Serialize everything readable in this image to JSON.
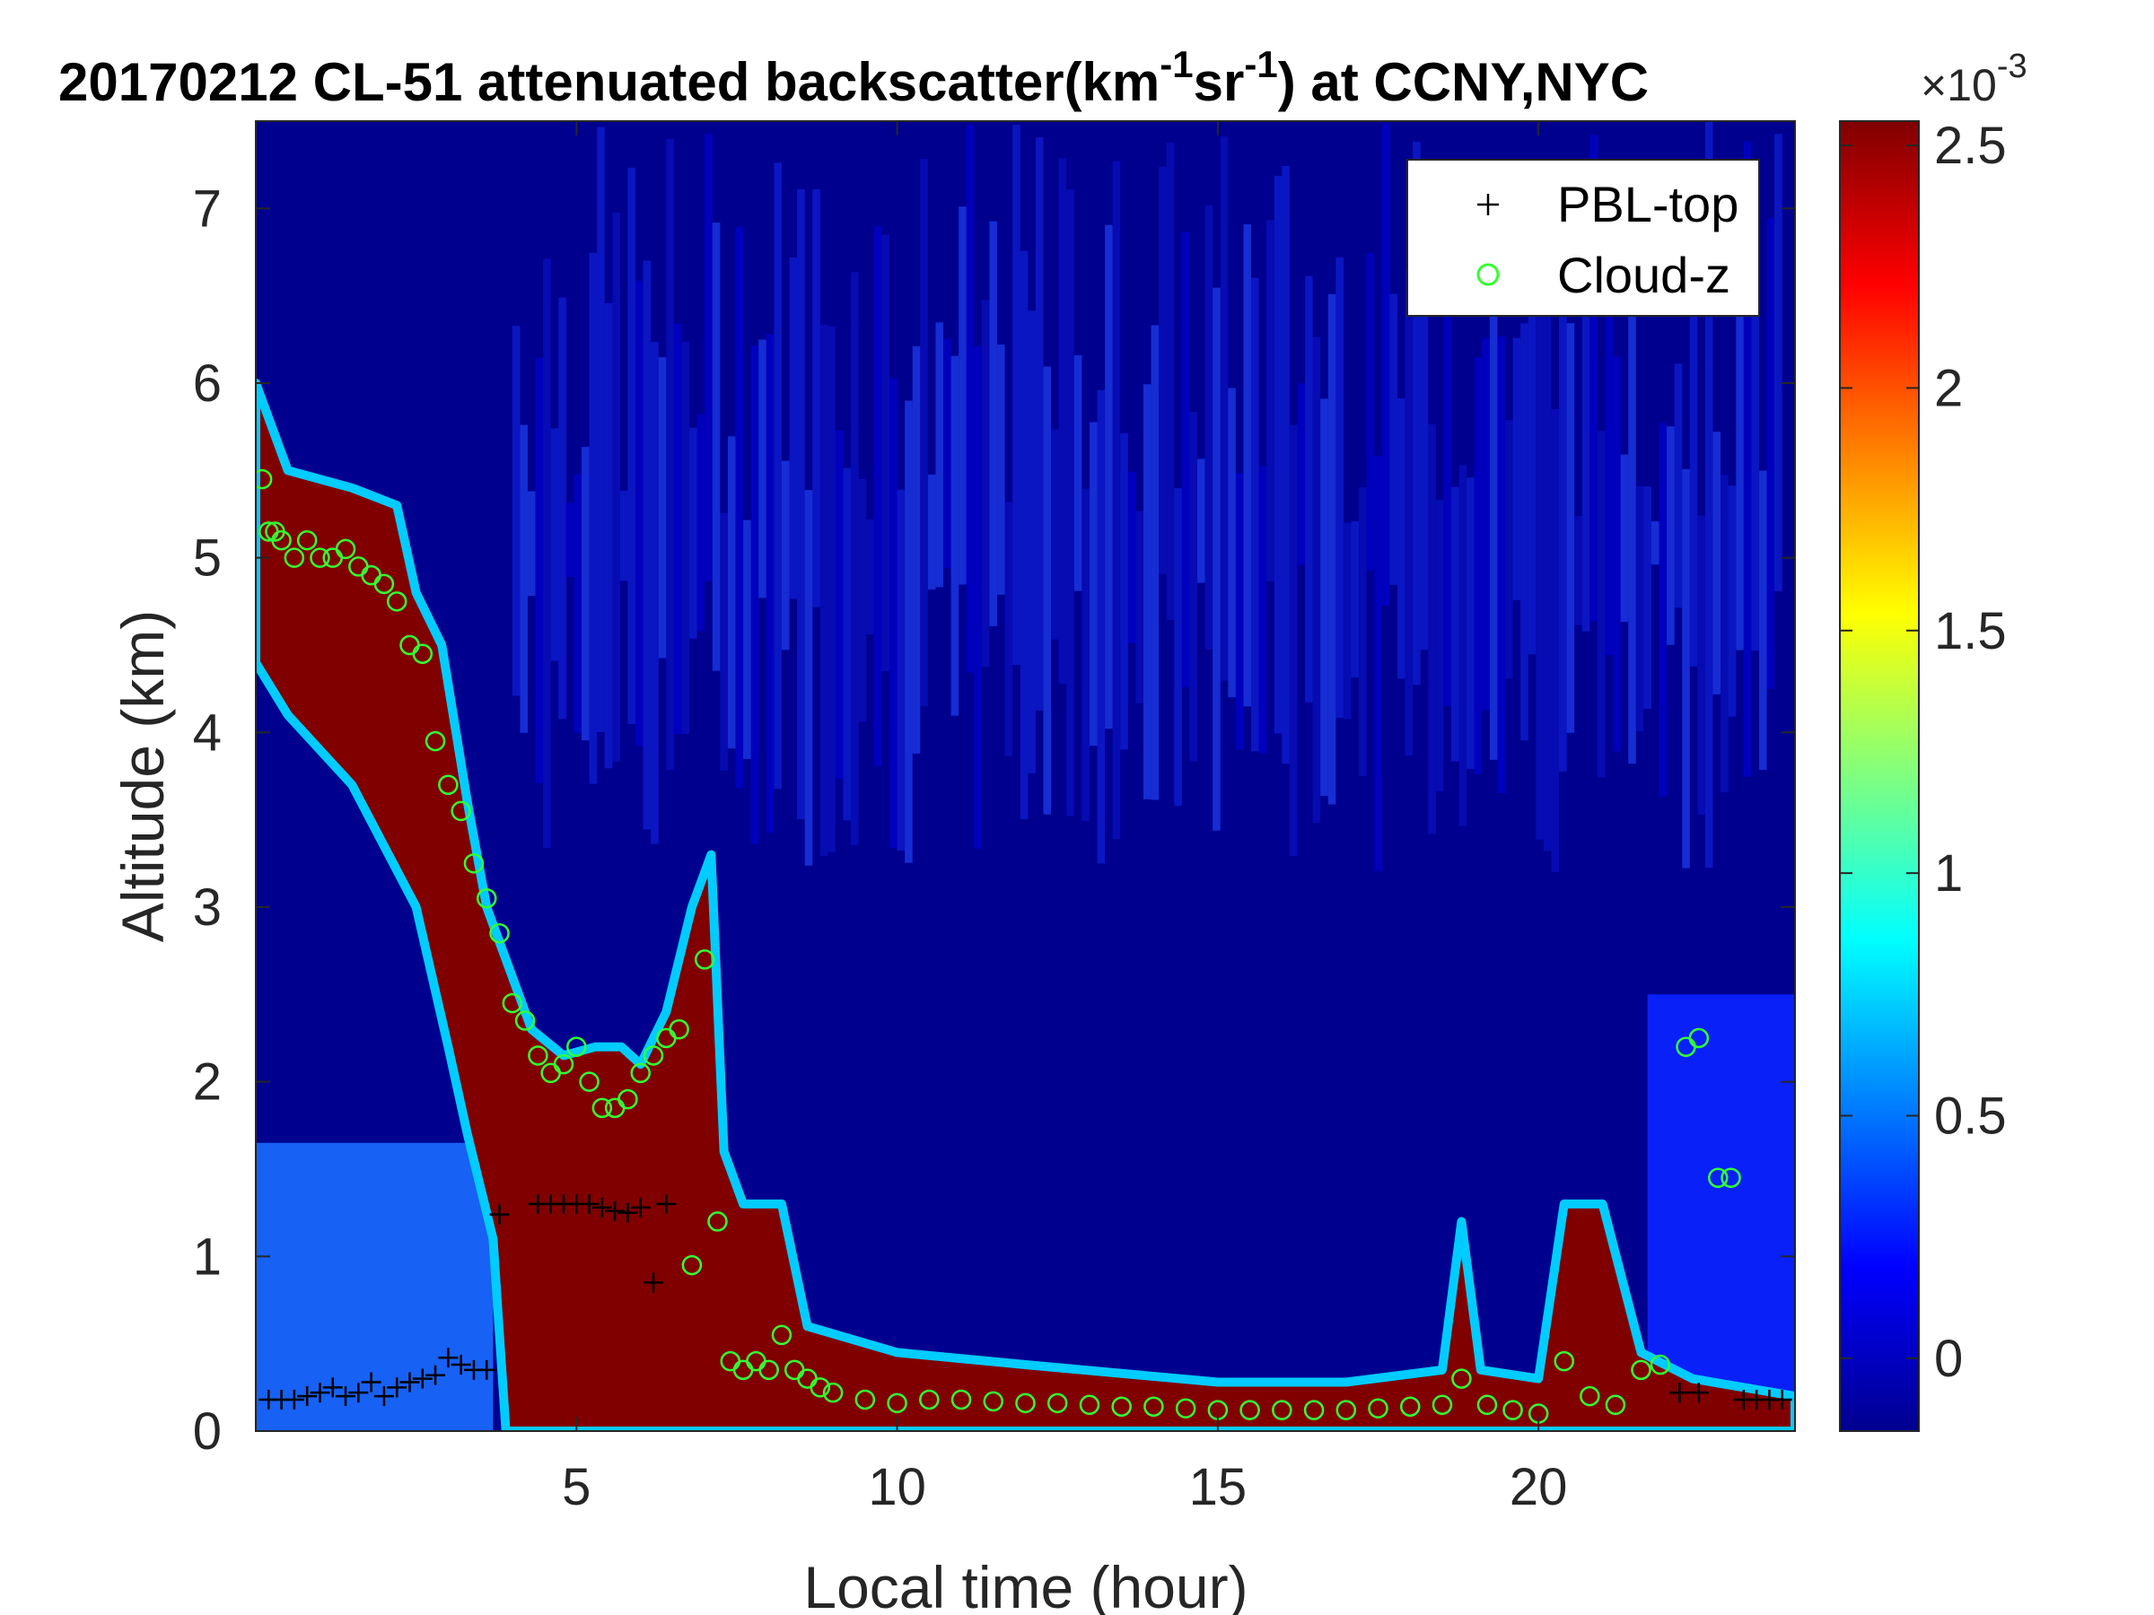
{
  "chart_data": {
    "type": "heatmap",
    "title": {
      "prefix": "20170212  CL-51 attenuated backscatter(km",
      "sup1": "-1",
      "middle": "sr",
      "sup2": "-1",
      "suffix": ") at CCNY,NYC"
    },
    "xlabel": "Local time (hour)",
    "ylabel": "Altitude (km)",
    "xlim": [
      0,
      24
    ],
    "ylim": [
      0,
      7.5
    ],
    "xticks": [
      5,
      10,
      15,
      20
    ],
    "yticks": [
      0,
      1,
      2,
      3,
      4,
      5,
      6,
      7
    ],
    "colorbar": {
      "clim": [
        -0.00015,
        0.00255
      ],
      "ticks": [
        0,
        0.5,
        1,
        1.5,
        2,
        2.5
      ],
      "tick_labels": [
        "0",
        "0.5",
        "1",
        "1.5",
        "2",
        "2.5"
      ],
      "exponent_base": "×10",
      "exponent": "-3",
      "colormap": "jet"
    },
    "legend": {
      "location": "top-right",
      "entries": [
        {
          "label": "PBL-top",
          "marker": "+",
          "color": "#000000"
        },
        {
          "label": "Cloud-z",
          "marker": "o",
          "color": "#33ff33"
        }
      ]
    },
    "layer_top_km": [
      [
        0.0,
        6.0
      ],
      [
        0.5,
        5.5
      ],
      [
        1.5,
        5.4
      ],
      [
        2.2,
        5.3
      ],
      [
        2.5,
        4.8
      ],
      [
        2.9,
        4.5
      ],
      [
        3.3,
        3.6
      ],
      [
        3.6,
        3.0
      ],
      [
        3.9,
        2.7
      ],
      [
        4.3,
        2.3
      ],
      [
        4.8,
        2.15
      ],
      [
        5.3,
        2.2
      ],
      [
        5.7,
        2.2
      ],
      [
        6.0,
        2.1
      ],
      [
        6.4,
        2.4
      ],
      [
        6.8,
        3.0
      ],
      [
        7.1,
        3.3
      ],
      [
        7.3,
        1.6
      ],
      [
        7.6,
        1.3
      ],
      [
        8.2,
        1.3
      ],
      [
        8.6,
        0.6
      ],
      [
        10.0,
        0.45
      ],
      [
        12.0,
        0.38
      ],
      [
        15.0,
        0.28
      ],
      [
        17.0,
        0.28
      ],
      [
        18.5,
        0.35
      ],
      [
        18.8,
        1.2
      ],
      [
        19.1,
        0.35
      ],
      [
        20.0,
        0.3
      ],
      [
        20.4,
        1.3
      ],
      [
        21.0,
        1.3
      ],
      [
        21.6,
        0.45
      ],
      [
        22.4,
        0.3
      ],
      [
        24.0,
        0.2
      ]
    ],
    "layer_bottom_km": [
      [
        0.0,
        4.4
      ],
      [
        0.5,
        4.1
      ],
      [
        1.5,
        3.7
      ],
      [
        2.5,
        3.0
      ],
      [
        3.0,
        2.2
      ],
      [
        3.3,
        1.7
      ],
      [
        3.7,
        1.1
      ],
      [
        3.9,
        0.0
      ],
      [
        24.0,
        0.0
      ]
    ],
    "series": [
      {
        "name": "PBL-top",
        "x": [
          0.2,
          0.4,
          0.6,
          0.8,
          1.0,
          1.2,
          1.4,
          1.6,
          1.8,
          2.0,
          2.2,
          2.4,
          2.6,
          2.8,
          3.0,
          3.2,
          3.4,
          3.6,
          3.8,
          4.4,
          4.6,
          4.8,
          5.0,
          5.2,
          5.4,
          5.6,
          5.8,
          6.0,
          6.2,
          6.4,
          22.2,
          22.5,
          23.2,
          23.4,
          23.6,
          23.8
        ],
        "y": [
          0.18,
          0.18,
          0.18,
          0.2,
          0.22,
          0.25,
          0.2,
          0.22,
          0.28,
          0.2,
          0.25,
          0.28,
          0.3,
          0.32,
          0.42,
          0.38,
          0.35,
          0.35,
          1.24,
          1.3,
          1.3,
          1.3,
          1.3,
          1.3,
          1.28,
          1.26,
          1.25,
          1.28,
          0.85,
          1.3,
          0.22,
          0.22,
          0.18,
          0.18,
          0.18,
          0.18
        ]
      },
      {
        "name": "Cloud-z",
        "x": [
          0.1,
          0.2,
          0.3,
          0.4,
          0.6,
          0.8,
          1.0,
          1.2,
          1.4,
          1.6,
          1.8,
          2.0,
          2.2,
          2.4,
          2.6,
          2.8,
          3.0,
          3.2,
          3.4,
          3.6,
          3.8,
          4.0,
          4.2,
          4.4,
          4.6,
          4.8,
          5.0,
          5.2,
          5.4,
          5.6,
          5.8,
          6.0,
          6.2,
          6.4,
          6.6,
          6.8,
          7.0,
          7.2,
          7.4,
          7.6,
          7.8,
          8.0,
          8.2,
          8.4,
          8.6,
          8.8,
          9.0,
          9.5,
          10.0,
          10.5,
          11.0,
          11.5,
          12.0,
          12.5,
          13.0,
          13.5,
          14.0,
          14.5,
          15.0,
          15.5,
          16.0,
          16.5,
          17.0,
          17.5,
          18.0,
          18.5,
          18.8,
          19.2,
          19.6,
          20.0,
          20.4,
          20.8,
          21.2,
          21.6,
          21.9,
          22.3,
          22.5,
          22.8,
          23.0
        ],
        "y": [
          5.45,
          5.15,
          5.15,
          5.1,
          5.0,
          5.1,
          5.0,
          5.0,
          5.05,
          4.95,
          4.9,
          4.85,
          4.75,
          4.5,
          4.45,
          3.95,
          3.7,
          3.55,
          3.25,
          3.05,
          2.85,
          2.45,
          2.35,
          2.15,
          2.05,
          2.1,
          2.2,
          2.0,
          1.85,
          1.85,
          1.9,
          2.05,
          2.15,
          2.25,
          2.3,
          0.95,
          2.7,
          1.2,
          0.4,
          0.35,
          0.4,
          0.35,
          0.55,
          0.35,
          0.3,
          0.25,
          0.22,
          0.18,
          0.16,
          0.18,
          0.18,
          0.17,
          0.16,
          0.16,
          0.15,
          0.14,
          0.14,
          0.13,
          0.12,
          0.12,
          0.12,
          0.12,
          0.12,
          0.13,
          0.14,
          0.15,
          0.3,
          0.15,
          0.12,
          0.1,
          0.4,
          0.2,
          0.15,
          0.35,
          0.38,
          2.2,
          2.25,
          1.45,
          1.45
        ]
      }
    ]
  }
}
